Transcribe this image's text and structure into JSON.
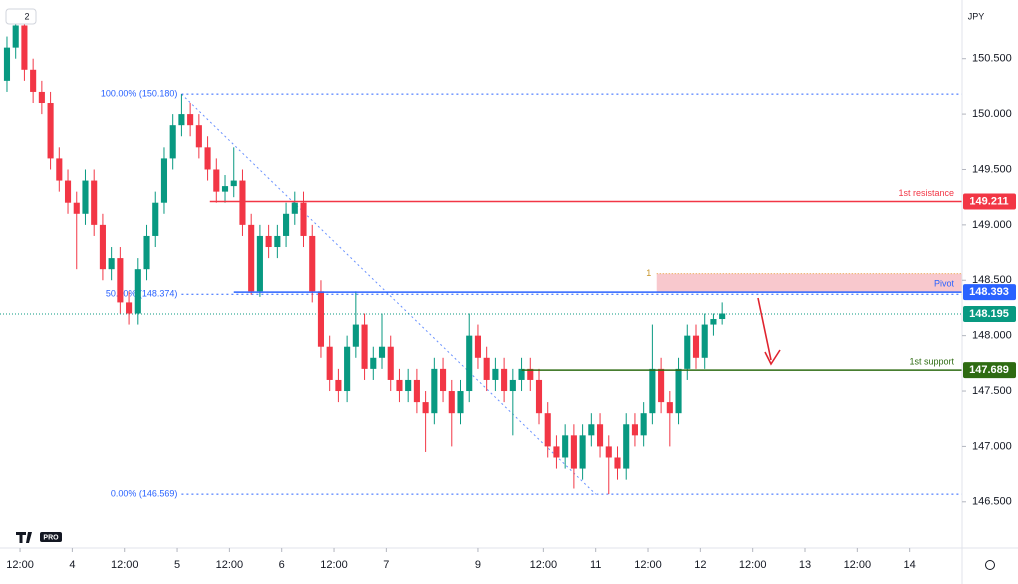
{
  "chart_data": {
    "type": "candlestick",
    "badge": "2",
    "currency": "JPY",
    "logo": "PRO",
    "xlim": [
      -4.6,
      216
    ],
    "ylim": [
      146.11,
      151.03
    ],
    "xticks": [
      {
        "value": 0,
        "label": "12:00"
      },
      {
        "value": 12,
        "label": "4"
      },
      {
        "value": 24,
        "label": "12:00"
      },
      {
        "value": 36,
        "label": "5"
      },
      {
        "value": 48,
        "label": "12:00"
      },
      {
        "value": 60,
        "label": "6"
      },
      {
        "value": 72,
        "label": "12:00"
      },
      {
        "value": 84,
        "label": "7"
      },
      {
        "value": 105,
        "label": "9"
      },
      {
        "value": 120,
        "label": "12:00"
      },
      {
        "value": 132,
        "label": "11"
      },
      {
        "value": 144,
        "label": "12:00"
      },
      {
        "value": 156,
        "label": "12"
      },
      {
        "value": 168,
        "label": "12:00"
      },
      {
        "value": 180,
        "label": "13"
      },
      {
        "value": 192,
        "label": "12:00"
      },
      {
        "value": 204,
        "label": "14"
      }
    ],
    "yticks": [
      {
        "value": 150.5,
        "label": "150.500"
      },
      {
        "value": 150,
        "label": "150.000"
      },
      {
        "value": 149.5,
        "label": "149.500"
      },
      {
        "value": 149,
        "label": "149.000"
      },
      {
        "value": 148.5,
        "label": "148.500"
      },
      {
        "value": 148,
        "label": "148.000"
      },
      {
        "value": 147.5,
        "label": "147.500"
      },
      {
        "value": 147,
        "label": "147.000"
      },
      {
        "value": 146.5,
        "label": "146.500"
      }
    ],
    "up_color": "#089981",
    "down_color": "#f23645",
    "x": [
      -3,
      -1,
      1,
      3,
      5,
      7,
      9,
      11,
      13,
      15,
      17,
      19,
      21,
      23,
      25,
      27,
      29,
      31,
      33,
      35,
      37,
      39,
      41,
      43,
      45,
      47,
      49,
      51,
      53,
      55,
      57,
      59,
      61,
      63,
      65,
      67,
      69,
      71,
      73,
      75,
      77,
      79,
      81,
      83,
      85,
      87,
      89,
      91,
      93,
      95,
      97,
      99,
      101,
      103,
      105,
      107,
      109,
      111,
      113,
      115,
      117,
      119,
      121,
      123,
      125,
      127,
      129,
      131,
      133,
      135,
      137,
      139,
      141,
      143,
      145,
      147,
      149,
      151,
      153,
      155,
      157,
      159,
      161
    ],
    "open": [
      150.3,
      150.6,
      150.8,
      150.4,
      150.2,
      150.1,
      149.6,
      149.4,
      149.2,
      149.1,
      149.4,
      149.0,
      148.6,
      148.7,
      148.3,
      148.2,
      148.6,
      148.9,
      149.2,
      149.6,
      149.9,
      150.0,
      149.9,
      149.7,
      149.5,
      149.3,
      149.35,
      149.4,
      149.0,
      148.4,
      148.9,
      148.8,
      148.9,
      149.1,
      149.2,
      148.9,
      148.4,
      147.9,
      147.6,
      147.5,
      147.9,
      148.1,
      147.7,
      147.8,
      147.9,
      147.6,
      147.5,
      147.6,
      147.4,
      147.3,
      147.7,
      147.5,
      147.3,
      147.5,
      148.0,
      147.8,
      147.6,
      147.7,
      147.5,
      147.6,
      147.7,
      147.6,
      147.3,
      147.0,
      146.9,
      147.1,
      146.8,
      147.1,
      147.2,
      147.0,
      146.9,
      146.8,
      147.2,
      147.1,
      147.3,
      147.7,
      147.4,
      147.3,
      147.7,
      148.0,
      147.8,
      148.1,
      148.15
    ],
    "high": [
      150.7,
      150.9,
      150.9,
      150.5,
      150.3,
      150.2,
      149.7,
      149.5,
      149.3,
      149.5,
      149.5,
      149.1,
      148.8,
      148.8,
      148.4,
      148.7,
      149.0,
      149.3,
      149.7,
      150.0,
      150.18,
      150.1,
      150.0,
      149.8,
      149.6,
      149.45,
      149.7,
      149.5,
      149.1,
      149.0,
      149.0,
      149.0,
      149.2,
      149.3,
      149.3,
      149.0,
      148.5,
      148.0,
      147.7,
      148.0,
      148.4,
      148.2,
      147.9,
      148.2,
      148.0,
      147.7,
      147.7,
      147.7,
      147.5,
      147.8,
      147.8,
      147.6,
      147.6,
      148.2,
      148.1,
      147.9,
      147.8,
      147.8,
      147.7,
      147.8,
      147.8,
      147.7,
      147.4,
      147.1,
      147.2,
      147.2,
      147.2,
      147.3,
      147.3,
      147.1,
      147.0,
      147.3,
      147.3,
      147.4,
      148.1,
      147.8,
      147.5,
      147.8,
      148.1,
      148.1,
      148.2,
      148.2,
      148.3
    ],
    "low": [
      150.2,
      150.5,
      150.3,
      150.1,
      150.0,
      149.5,
      149.3,
      149.1,
      148.6,
      149.0,
      148.9,
      148.5,
      148.5,
      148.2,
      148.1,
      148.1,
      148.5,
      148.8,
      149.1,
      149.5,
      149.8,
      149.8,
      149.6,
      149.4,
      149.2,
      149.2,
      149.25,
      148.9,
      148.37,
      148.35,
      148.7,
      148.7,
      148.8,
      149.0,
      148.8,
      148.3,
      147.8,
      147.5,
      147.4,
      147.4,
      147.8,
      147.6,
      147.6,
      147.7,
      147.5,
      147.4,
      147.4,
      147.3,
      146.95,
      147.2,
      147.4,
      147.0,
      147.2,
      147.4,
      147.7,
      147.5,
      147.5,
      147.4,
      147.1,
      147.5,
      147.5,
      147.2,
      146.9,
      146.8,
      146.8,
      146.62,
      146.7,
      147.0,
      146.9,
      146.57,
      146.7,
      146.7,
      147.0,
      147.0,
      147.2,
      147.3,
      147.0,
      147.2,
      147.6,
      147.7,
      147.7,
      148.0,
      148.1
    ],
    "close": [
      150.6,
      150.8,
      150.4,
      150.2,
      150.1,
      149.6,
      149.4,
      149.2,
      149.1,
      149.4,
      149.0,
      148.6,
      148.7,
      148.3,
      148.2,
      148.6,
      148.9,
      149.2,
      149.6,
      149.9,
      150.0,
      149.9,
      149.7,
      149.5,
      149.3,
      149.35,
      149.4,
      149.0,
      148.4,
      148.9,
      148.8,
      148.9,
      149.1,
      149.2,
      148.9,
      148.4,
      147.9,
      147.6,
      147.5,
      147.9,
      148.1,
      147.7,
      147.8,
      147.9,
      147.6,
      147.5,
      147.6,
      147.4,
      147.3,
      147.7,
      147.5,
      147.3,
      147.5,
      148.0,
      147.8,
      147.6,
      147.7,
      147.5,
      147.6,
      147.7,
      147.6,
      147.3,
      147.0,
      146.9,
      147.1,
      146.8,
      147.1,
      147.2,
      147.0,
      146.9,
      146.8,
      147.2,
      147.1,
      147.3,
      147.7,
      147.4,
      147.3,
      147.7,
      148.0,
      147.8,
      148.1,
      148.15,
      148.2
    ],
    "levels": [
      {
        "name": "1st resistance",
        "value": 149.211,
        "color": "#f23645",
        "start": 43.5
      },
      {
        "name": "Pivot",
        "value": 148.393,
        "color": "#2962ff",
        "start": 49
      },
      {
        "name": "1st support",
        "value": 147.689,
        "color": "#2e6b12",
        "start": 115
      }
    ],
    "current_price": {
      "value": 148.195,
      "color": "#089981"
    },
    "fib": {
      "start": 37,
      "end": 132,
      "color": "#2962ff",
      "levels": [
        {
          "label": "100.00% (150.180)",
          "value": 150.18
        },
        {
          "label": "50.00% (148.374)",
          "value": 148.374
        },
        {
          "label": "0.00% (146.569)",
          "value": 146.569
        }
      ]
    },
    "zone": {
      "label": "1",
      "start": 146,
      "low": 148.393,
      "high": 148.56,
      "color": "#f8c8cd"
    }
  }
}
